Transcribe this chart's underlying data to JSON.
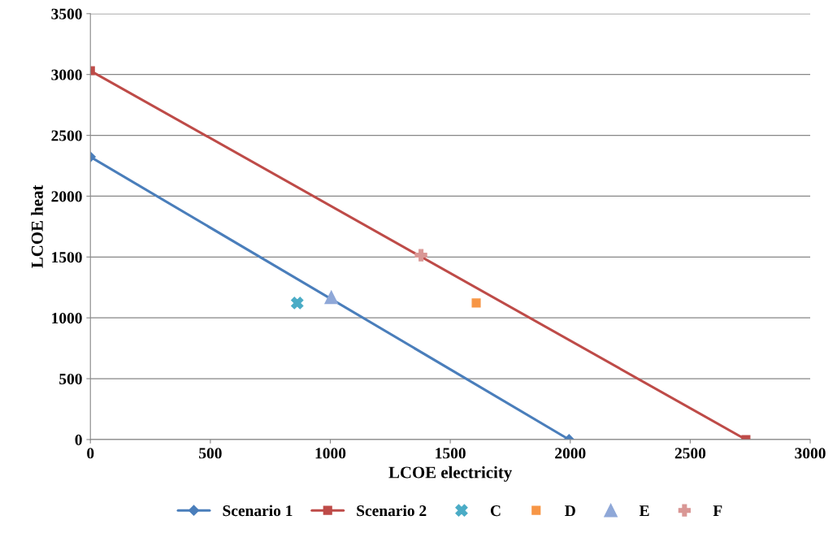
{
  "chart_data": {
    "type": "line",
    "xlabel": "LCOE electricity",
    "ylabel": "LCOE heat",
    "xlim": [
      0,
      3000
    ],
    "ylim": [
      0,
      3500
    ],
    "xticks": [
      0,
      500,
      1000,
      1500,
      2000,
      2500,
      3000
    ],
    "yticks": [
      0,
      500,
      1000,
      1500,
      2000,
      2500,
      3000,
      3500
    ],
    "grid": "y",
    "legend": "bottom",
    "series": [
      {
        "name": "Scenario 1",
        "color": "#4a7ebb",
        "marker": "diamond",
        "x": [
          0,
          1995
        ],
        "values": [
          2323,
          0
        ]
      },
      {
        "name": "Scenario 2",
        "color": "#be4b48",
        "marker": "square",
        "x": [
          0,
          2732
        ],
        "values": [
          3031,
          0
        ]
      },
      {
        "name": "C",
        "type": "scatter",
        "color": "#4bacc6",
        "marker": "cross",
        "x": [
          862
        ],
        "values": [
          1122
        ]
      },
      {
        "name": "D",
        "type": "scatter",
        "color": "#f79646",
        "marker": "square",
        "x": [
          1608
        ],
        "values": [
          1122
        ]
      },
      {
        "name": "E",
        "type": "scatter",
        "color": "#8fa8d8",
        "marker": "triangle",
        "x": [
          1004
        ],
        "values": [
          1168
        ]
      },
      {
        "name": "F",
        "type": "scatter",
        "color": "#d99795",
        "marker": "plus",
        "x": [
          1378
        ],
        "values": [
          1515
        ]
      }
    ]
  }
}
